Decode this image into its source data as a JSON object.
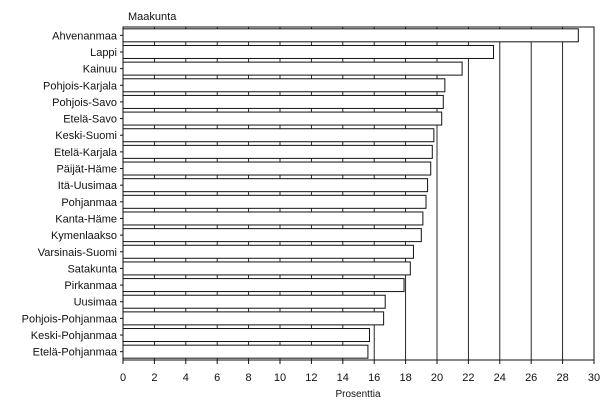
{
  "chart_data": {
    "type": "bar",
    "orientation": "horizontal",
    "y_axis_title": "Maakunta",
    "xlabel": "Prosenttia",
    "categories": [
      "Ahvenanmaa",
      "Lappi",
      "Kainuu",
      "Pohjois-Karjala",
      "Pohjois-Savo",
      "Etelä-Savo",
      "Keski-Suomi",
      "Etelä-Karjala",
      "Päijät-Häme",
      "Itä-Uusimaa",
      "Pohjanmaa",
      "Kanta-Häme",
      "Kymenlaakso",
      "Varsinais-Suomi",
      "Satakunta",
      "Pirkanmaa",
      "Uusimaa",
      "Pohjois-Pohjanmaa",
      "Keski-Pohjanmaa",
      "Etelä-Pohjanmaa"
    ],
    "values": [
      29.0,
      23.6,
      21.6,
      20.5,
      20.4,
      20.3,
      19.8,
      19.7,
      19.6,
      19.4,
      19.3,
      19.1,
      19.0,
      18.5,
      18.3,
      17.9,
      16.7,
      16.6,
      15.7,
      15.6
    ],
    "xlim": [
      0,
      30
    ],
    "xticks": [
      0,
      2,
      4,
      6,
      8,
      10,
      12,
      14,
      16,
      18,
      20,
      22,
      24,
      26,
      28,
      30
    ],
    "grid": "vertical lines at tick positions"
  }
}
